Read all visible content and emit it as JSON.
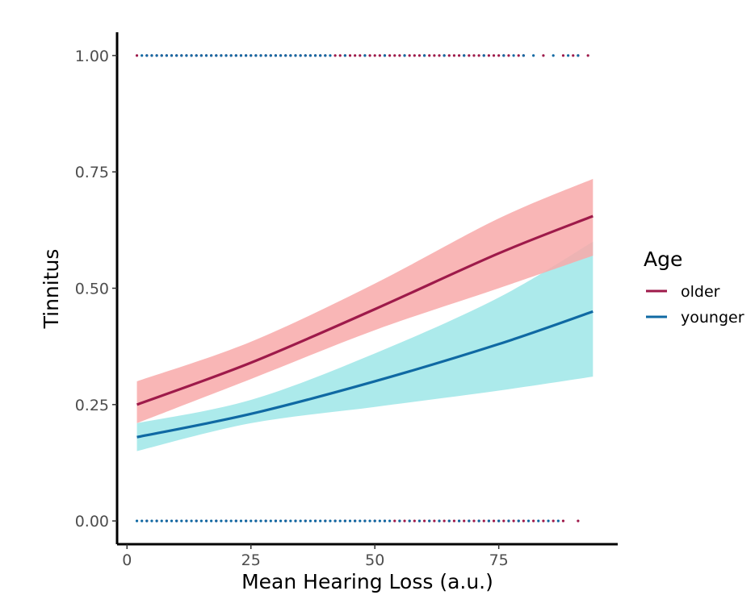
{
  "chart_data": {
    "type": "line",
    "title": "",
    "xlabel": "Mean Hearing Loss (a.u.)",
    "ylabel": "Tinnitus",
    "xlim": [
      -2,
      99
    ],
    "ylim": [
      -0.05,
      1.05
    ],
    "x_ticks": [
      0,
      25,
      50,
      75
    ],
    "x_tick_labels": [
      "0",
      "25",
      "50",
      "75"
    ],
    "y_ticks": [
      0,
      0.25,
      0.5,
      0.75,
      1.0
    ],
    "y_tick_labels": [
      "0.00",
      "0.25",
      "0.50",
      "0.75",
      "1.00"
    ],
    "legend": {
      "title": "Age",
      "position": "right"
    },
    "series": [
      {
        "name": "older",
        "color": "#9e1a4a",
        "band_color": "#f8a9a9",
        "x": [
          2,
          25,
          50,
          75,
          94
        ],
        "y": [
          0.25,
          0.34,
          0.455,
          0.575,
          0.655
        ],
        "lower": [
          0.21,
          0.305,
          0.41,
          0.5,
          0.57
        ],
        "upper": [
          0.3,
          0.385,
          0.51,
          0.65,
          0.735
        ],
        "points_y1": [
          2,
          4,
          5,
          6,
          7,
          8,
          9,
          10,
          11,
          12,
          13,
          14,
          15,
          16,
          17,
          18,
          19,
          20,
          21,
          22,
          23,
          24,
          25,
          26,
          27,
          28,
          29,
          30,
          31,
          32,
          33,
          34,
          35,
          36,
          37,
          38,
          39,
          40,
          42,
          43,
          44,
          45,
          46,
          47,
          48,
          49,
          50,
          51,
          52,
          53,
          54,
          55,
          56,
          57,
          58,
          59,
          60,
          61,
          62,
          63,
          64,
          65,
          66,
          67,
          68,
          69,
          70,
          71,
          72,
          73,
          74,
          75,
          76,
          77,
          79,
          80,
          84,
          88,
          90,
          91,
          93
        ],
        "points_y0": [
          4,
          6,
          8,
          10,
          12,
          14,
          16,
          18,
          20,
          22,
          24,
          26,
          28,
          30,
          32,
          34,
          36,
          38,
          40,
          42,
          44,
          46,
          48,
          50,
          52,
          54,
          55,
          56,
          57,
          58,
          59,
          60,
          61,
          62,
          63,
          64,
          65,
          66,
          67,
          68,
          69,
          70,
          71,
          72,
          73,
          74,
          75,
          76,
          77,
          78,
          79,
          80,
          82,
          84,
          86,
          88,
          91
        ]
      },
      {
        "name": "younger",
        "color": "#0f69a3",
        "band_color": "#9ee6e8",
        "x": [
          2,
          25,
          50,
          75,
          94
        ],
        "y": [
          0.18,
          0.23,
          0.3,
          0.38,
          0.45
        ],
        "lower": [
          0.15,
          0.21,
          0.245,
          0.28,
          0.31
        ],
        "upper": [
          0.21,
          0.26,
          0.36,
          0.48,
          0.6
        ],
        "points_y1": [
          3,
          4,
          5,
          6,
          7,
          8,
          9,
          10,
          11,
          12,
          13,
          14,
          15,
          16,
          17,
          18,
          19,
          20,
          21,
          22,
          23,
          24,
          25,
          26,
          27,
          28,
          29,
          30,
          31,
          32,
          33,
          34,
          35,
          36,
          37,
          38,
          39,
          40,
          41,
          44,
          48,
          52,
          56,
          60,
          64,
          68,
          72,
          76,
          78,
          80,
          82,
          86,
          89,
          91
        ],
        "points_y0": [
          2,
          3,
          4,
          5,
          6,
          7,
          8,
          9,
          10,
          11,
          12,
          13,
          14,
          15,
          16,
          17,
          18,
          19,
          20,
          21,
          22,
          23,
          24,
          25,
          26,
          27,
          28,
          29,
          30,
          31,
          32,
          33,
          34,
          35,
          36,
          37,
          38,
          39,
          40,
          41,
          42,
          43,
          44,
          45,
          46,
          47,
          48,
          49,
          50,
          51,
          52,
          53,
          55,
          57,
          59,
          61,
          63,
          65,
          67,
          69,
          71,
          73,
          75,
          77,
          79,
          81,
          83,
          85,
          87
        ]
      }
    ]
  }
}
